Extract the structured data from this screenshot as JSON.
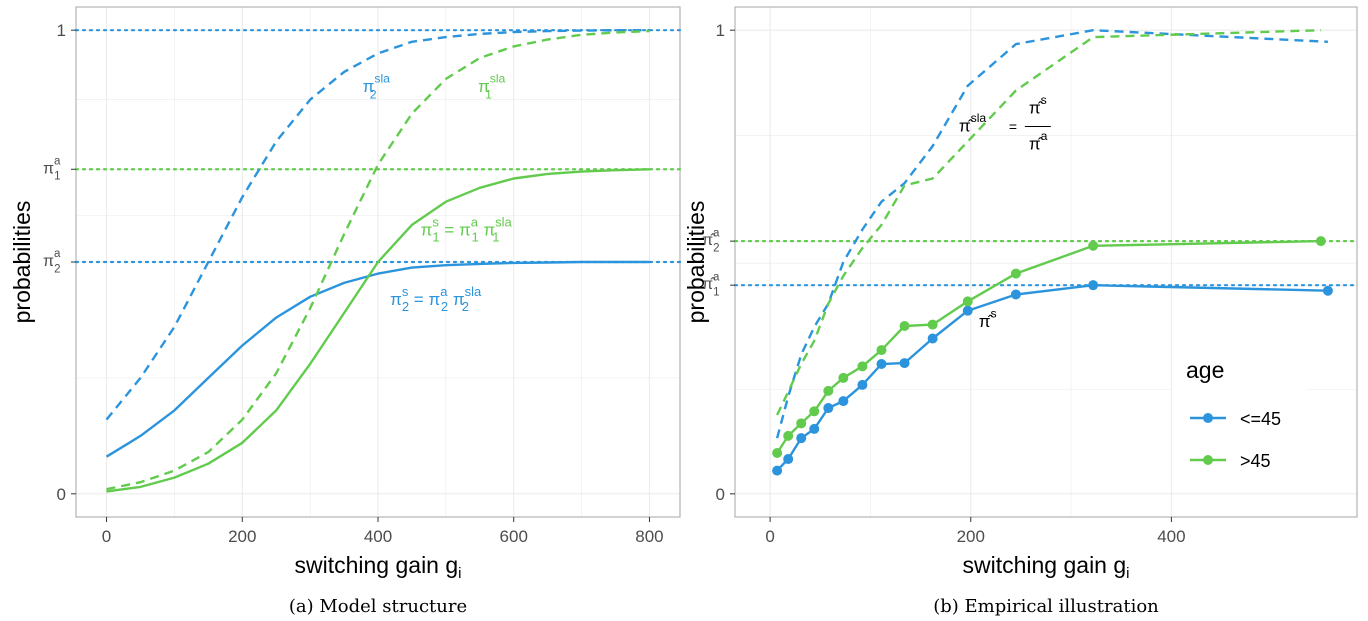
{
  "colors": {
    "blue": "#2b94dc",
    "green": "#62cb4e",
    "grid": "#ebebeb",
    "panel_border": "#b3b3b3"
  },
  "chart_data": [
    {
      "type": "line",
      "caption": "(a) Model structure",
      "xlabel": "switching gain g",
      "xlabel_sub": "i",
      "ylabel": "probabilities",
      "xlim": [
        -45,
        845
      ],
      "ylim": [
        -0.05,
        1.05
      ],
      "xticks": [
        0,
        200,
        400,
        600,
        800
      ],
      "xtick_labels": [
        "0",
        "200",
        "400",
        "600",
        "800"
      ],
      "yticks": [
        0,
        1
      ],
      "ytick_labels": [
        "0",
        "1"
      ],
      "symbolic_yticks": [
        {
          "value": 0.7,
          "base": "π",
          "sub": "1",
          "sup": "a",
          "color": "green"
        },
        {
          "value": 0.5,
          "base": "π",
          "sub": "2",
          "sup": "a",
          "color": "blue"
        }
      ],
      "reference_lines": [
        {
          "value": 1.0,
          "color": "blue",
          "style": "dotted"
        },
        {
          "value": 0.7,
          "color": "green",
          "style": "dotted"
        },
        {
          "value": 0.5,
          "color": "blue",
          "style": "dotted"
        }
      ],
      "series": [
        {
          "color": "blue",
          "style": "dashed",
          "x": [
            0,
            50,
            100,
            150,
            200,
            250,
            300,
            350,
            400,
            450,
            500,
            550,
            600,
            650,
            700,
            750,
            800
          ],
          "y": [
            0.16,
            0.25,
            0.36,
            0.5,
            0.64,
            0.76,
            0.85,
            0.91,
            0.95,
            0.975,
            0.985,
            0.992,
            0.996,
            0.998,
            0.999,
            1.0,
            1.0
          ]
        },
        {
          "color": "blue",
          "style": "solid",
          "x": [
            0,
            50,
            100,
            150,
            200,
            250,
            300,
            350,
            400,
            450,
            500,
            550,
            600,
            650,
            700,
            750,
            800
          ],
          "y": [
            0.08,
            0.125,
            0.18,
            0.25,
            0.32,
            0.38,
            0.425,
            0.455,
            0.475,
            0.488,
            0.493,
            0.496,
            0.498,
            0.499,
            0.5,
            0.5,
            0.5
          ]
        },
        {
          "color": "green",
          "style": "dashed",
          "x": [
            0,
            50,
            100,
            150,
            200,
            250,
            300,
            350,
            400,
            450,
            500,
            550,
            600,
            650,
            700,
            750,
            800
          ],
          "y": [
            0.01,
            0.025,
            0.05,
            0.09,
            0.16,
            0.26,
            0.4,
            0.56,
            0.71,
            0.82,
            0.895,
            0.94,
            0.965,
            0.98,
            0.99,
            0.995,
            0.998
          ]
        },
        {
          "color": "green",
          "style": "solid",
          "x": [
            0,
            50,
            100,
            150,
            200,
            250,
            300,
            350,
            400,
            450,
            500,
            550,
            600,
            650,
            700,
            750,
            800
          ],
          "y": [
            0.005,
            0.015,
            0.035,
            0.065,
            0.11,
            0.18,
            0.28,
            0.39,
            0.5,
            0.58,
            0.63,
            0.66,
            0.68,
            0.69,
            0.695,
            0.698,
            0.7
          ]
        }
      ],
      "annotations": [
        {
          "x": 395,
          "y": 0.88,
          "color": "blue",
          "base": "π",
          "sub": "2",
          "sup": "sla",
          "rest": ""
        },
        {
          "x": 565,
          "y": 0.88,
          "color": "green",
          "base": "π",
          "sub": "1",
          "sup": "sla",
          "rest": ""
        },
        {
          "x": 530,
          "y": 0.57,
          "color": "green",
          "formula": "π1s = π1a π1sla"
        },
        {
          "x": 485,
          "y": 0.42,
          "color": "blue",
          "formula": "π2s = π2a π2sla"
        }
      ]
    },
    {
      "type": "line",
      "caption": "(b) Empirical illustration",
      "xlabel": "switching gain g",
      "xlabel_sub": "i",
      "ylabel": "probabilities",
      "xlim": [
        -35,
        585
      ],
      "ylim": [
        -0.05,
        1.05
      ],
      "xticks": [
        0,
        200,
        400
      ],
      "xtick_labels": [
        "0",
        "200",
        "400"
      ],
      "yticks": [
        0,
        1
      ],
      "ytick_labels": [
        "0",
        "1"
      ],
      "symbolic_yticks": [
        {
          "value": 0.545,
          "base": "π̂",
          "sub": "2",
          "sup": "a",
          "color": "green"
        },
        {
          "value": 0.45,
          "base": "π̂",
          "sub": "1",
          "sup": "a",
          "color": "blue"
        }
      ],
      "reference_lines": [
        {
          "value": 0.545,
          "color": "green",
          "style": "dotted"
        },
        {
          "value": 0.45,
          "color": "blue",
          "style": "dotted"
        }
      ],
      "series": [
        {
          "name": "<=45",
          "color": "blue",
          "style": "solid",
          "markers": true,
          "x": [
            7,
            18,
            31,
            44,
            58,
            73,
            92,
            111,
            134,
            162,
            197,
            245,
            322,
            556
          ],
          "y": [
            0.05,
            0.075,
            0.12,
            0.14,
            0.185,
            0.2,
            0.235,
            0.28,
            0.282,
            0.335,
            0.395,
            0.43,
            0.45,
            0.438
          ]
        },
        {
          "name": ">45",
          "color": "green",
          "style": "solid",
          "markers": true,
          "x": [
            7,
            18,
            31,
            44,
            58,
            73,
            92,
            111,
            134,
            162,
            197,
            245,
            322,
            549
          ],
          "y": [
            0.088,
            0.125,
            0.152,
            0.178,
            0.222,
            0.25,
            0.275,
            0.31,
            0.362,
            0.365,
            0.415,
            0.475,
            0.535,
            0.545
          ]
        },
        {
          "color": "blue",
          "style": "dashed",
          "x": [
            7,
            18,
            31,
            44,
            58,
            73,
            92,
            111,
            134,
            162,
            197,
            245,
            322,
            556
          ],
          "y": [
            0.12,
            0.21,
            0.3,
            0.36,
            0.41,
            0.5,
            0.57,
            0.63,
            0.67,
            0.75,
            0.88,
            0.97,
            1.0,
            0.975
          ]
        },
        {
          "color": "green",
          "style": "dashed",
          "x": [
            7,
            18,
            31,
            44,
            58,
            73,
            92,
            111,
            134,
            162,
            197,
            245,
            322,
            549
          ],
          "y": [
            0.17,
            0.22,
            0.28,
            0.33,
            0.41,
            0.47,
            0.53,
            0.58,
            0.665,
            0.68,
            0.76,
            0.87,
            0.985,
            1.0
          ]
        }
      ],
      "annotations": [
        {
          "x": 230,
          "y": 0.79,
          "color": "black",
          "type": "fraction"
        },
        {
          "x": 215,
          "y": 0.39,
          "color": "black",
          "base": "π̂",
          "sup": "s",
          "sub": "",
          "rest": ""
        }
      ],
      "legend": {
        "title": "age",
        "position": "bottom-right",
        "entries": [
          {
            "label": "<=45",
            "color": "blue"
          },
          {
            "label": ">45",
            "color": "green"
          }
        ]
      }
    }
  ]
}
